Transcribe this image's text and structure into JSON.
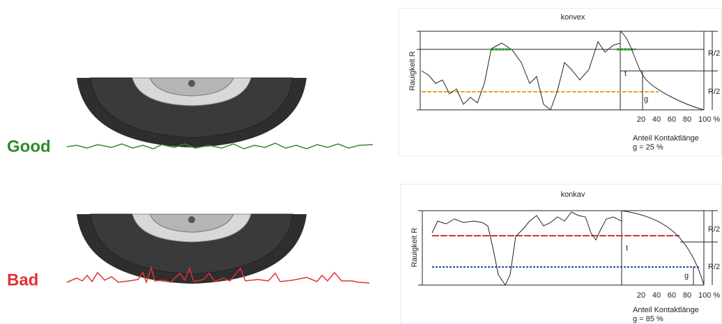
{
  "left": {
    "good_label": "Good",
    "bad_label": "Bad"
  },
  "panels": [
    {
      "title": "konvex",
      "y_axis_label": "Rauigkeit R",
      "half_labels": [
        "R/2",
        "R/2"
      ],
      "t_label": "t",
      "g_label": "g",
      "ticks": [
        "20",
        "40",
        "60",
        "80",
        "100 %"
      ],
      "x_caption": "Anteil Kontaktlänge",
      "g_value": "g = 25 %"
    },
    {
      "title": "konkav",
      "y_axis_label": "Rauigkeit R",
      "half_labels": [
        "R/2",
        "R/2"
      ],
      "t_label": "t",
      "g_label": "g",
      "ticks": [
        "20",
        "40",
        "60",
        "80",
        "100 %"
      ],
      "x_caption": "Anteil Kontaktlänge",
      "g_value": "g = 85 %"
    }
  ]
}
